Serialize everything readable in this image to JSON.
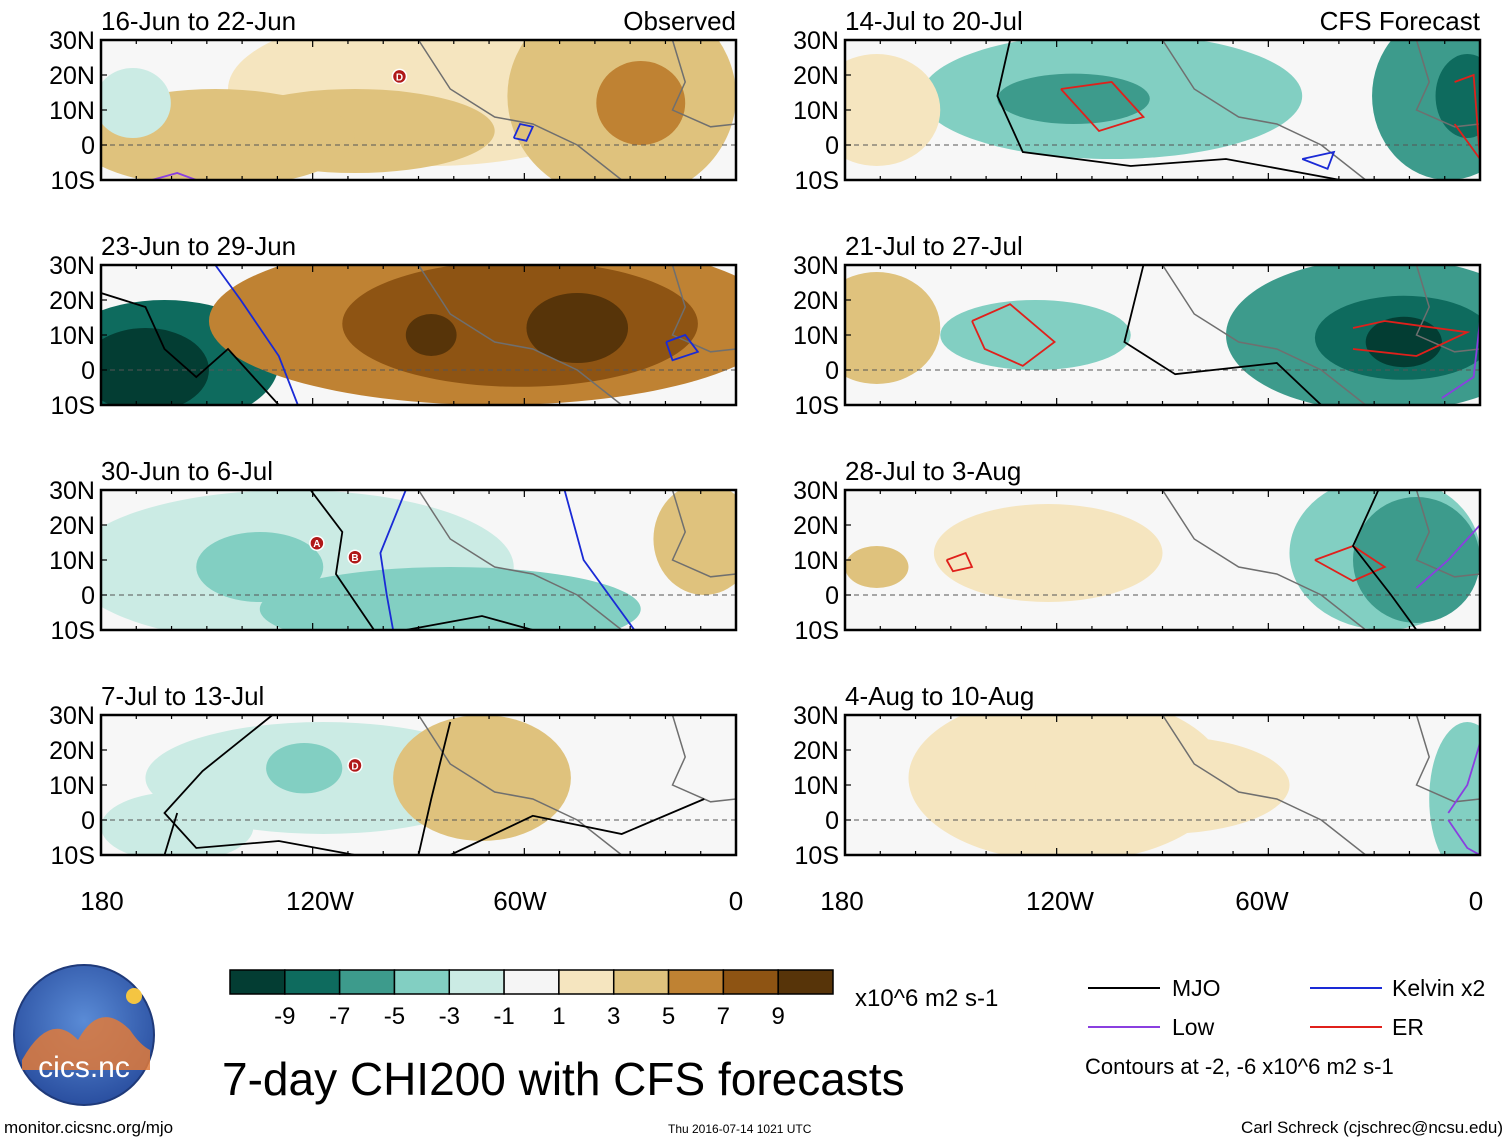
{
  "title": "7-day CHI200 with CFS forecasts",
  "panels": [
    {
      "id": "p1",
      "date_range": "16-Jun to 22-Jun",
      "tag": "Observed",
      "column": "left",
      "row": 0
    },
    {
      "id": "p2",
      "date_range": "23-Jun to 29-Jun",
      "tag": "",
      "column": "left",
      "row": 1
    },
    {
      "id": "p3",
      "date_range": "30-Jun to 6-Jul",
      "tag": "",
      "column": "left",
      "row": 2
    },
    {
      "id": "p4",
      "date_range": "7-Jul to 13-Jul",
      "tag": "",
      "column": "left",
      "row": 3
    },
    {
      "id": "p5",
      "date_range": "14-Jul to 20-Jul",
      "tag": "CFS Forecast",
      "column": "right",
      "row": 0
    },
    {
      "id": "p6",
      "date_range": "21-Jul to 27-Jul",
      "tag": "",
      "column": "right",
      "row": 1
    },
    {
      "id": "p7",
      "date_range": "28-Jul to 3-Aug",
      "tag": "",
      "column": "right",
      "row": 2
    },
    {
      "id": "p8",
      "date_range": "4-Aug to 10-Aug",
      "tag": "",
      "column": "right",
      "row": 3
    }
  ],
  "lat_labels": [
    "30N",
    "20N",
    "10N",
    "0",
    "10S"
  ],
  "lon_labels": [
    "180",
    "120W",
    "60W",
    "0"
  ],
  "storm_markers": [
    "D",
    "A",
    "B",
    "D"
  ],
  "colorbar": {
    "unit": "x10^6 m2 s-1",
    "tick_labels": [
      "-9",
      "-7",
      "-5",
      "-3",
      "-1",
      "1",
      "3",
      "5",
      "7",
      "9"
    ],
    "colors": [
      "#033d33",
      "#0e6b5e",
      "#3d9b8c",
      "#82cfc2",
      "#cbebe4",
      "#f5f5f5",
      "#f5e5bf",
      "#dfc27d",
      "#bf8233",
      "#8e5413",
      "#573409"
    ]
  },
  "legend": {
    "items": [
      {
        "label": "MJO",
        "color": "#000000"
      },
      {
        "label": "Kelvin x2",
        "color": "#1a2ad6"
      },
      {
        "label": "Low",
        "color": "#8a3fe0"
      },
      {
        "label": "ER",
        "color": "#e0201b"
      }
    ],
    "contour_note": "Contours at -2, -6 x10^6 m2 s-1"
  },
  "logo_text": "cics.nc",
  "footer": {
    "url": "monitor.cicsnc.org/mjo",
    "timestamp": "Thu 2016-07-14 1021 UTC",
    "author": "Carl Schreck (cjschrec@ncsu.edu)"
  }
}
